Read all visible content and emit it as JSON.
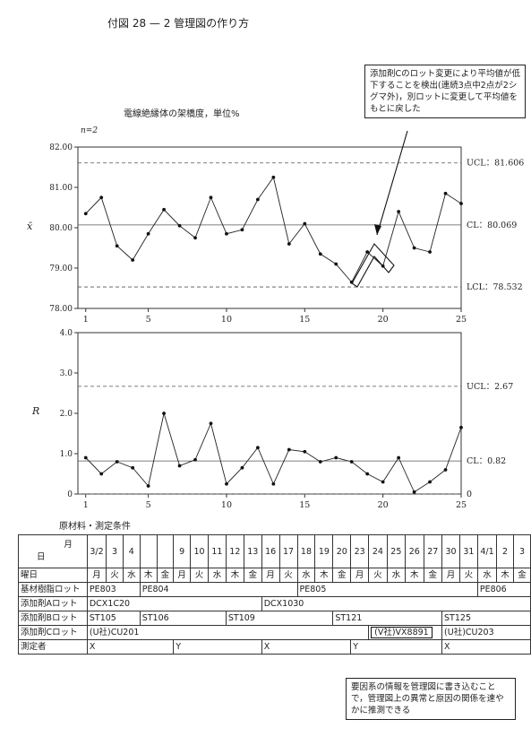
{
  "page": {
    "title": "付図 28 — 2 管理図の作り方"
  },
  "annotation_top": "添加剤Cのロット変更により平均値が低下することを検出(連続3点中2点が2シグマ外)，別ロットに変更して平均値をもとに戻した",
  "annotation_bottom": "要因系の情報を管理図に書き込むことで，管理図上の異常と原因の関係を速やかに推測できる",
  "conditions": {
    "title": "原材料・測定条件",
    "header_month_day": [
      "月",
      "日"
    ],
    "dates": [
      "3/2",
      "3",
      "4",
      "",
      "",
      "9",
      "10",
      "11",
      "12",
      "13",
      "16",
      "17",
      "18",
      "19",
      "20",
      "23",
      "24",
      "25",
      "26",
      "27",
      "30",
      "31",
      "4/1",
      "2",
      "3"
    ],
    "weekday_label": "曜日",
    "weekdays": [
      "月",
      "火",
      "水",
      "木",
      "金",
      "月",
      "火",
      "水",
      "木",
      "金",
      "月",
      "火",
      "水",
      "木",
      "金",
      "月",
      "火",
      "水",
      "木",
      "金",
      "月",
      "火",
      "水",
      "木",
      "金"
    ],
    "rows": [
      {
        "label": "基材樹脂ロット",
        "cells": [
          {
            "text": "PE803",
            "span": 3
          },
          {
            "text": "PE804",
            "span": 9
          },
          {
            "text": "PE805",
            "span": 10
          },
          {
            "text": "PE806",
            "span": 3
          }
        ]
      },
      {
        "label": "添加剤Aロット",
        "cells": [
          {
            "text": "DCX1C20",
            "span": 10
          },
          {
            "text": "DCX1030",
            "span": 15
          }
        ]
      },
      {
        "label": "添加剤Bロット",
        "cells": [
          {
            "text": "ST105",
            "span": 3
          },
          {
            "text": "ST106",
            "span": 5
          },
          {
            "text": "ST109",
            "span": 6
          },
          {
            "text": "ST121",
            "span": 6
          },
          {
            "text": "ST125",
            "span": 5
          }
        ]
      },
      {
        "label": "添加剤Cロット",
        "cells": [
          {
            "text": "(U社)CU201",
            "span": 16
          },
          {
            "text": "(V社)VX8891",
            "span": 4,
            "boxed": true
          },
          {
            "text": "(U社)CU203",
            "span": 5
          }
        ]
      },
      {
        "label": "測定者",
        "cells": [
          {
            "text": "X",
            "span": 5
          },
          {
            "text": "Y",
            "span": 5
          },
          {
            "text": "X",
            "span": 5
          },
          {
            "text": "Y",
            "span": 5
          },
          {
            "text": "X",
            "span": 5
          }
        ]
      }
    ]
  },
  "chart_data": [
    {
      "type": "line",
      "title": "電線絶縁体の架橋度，単位%",
      "n_label": "n=2",
      "ylabel": "x̄",
      "ylim": [
        78.0,
        82.0
      ],
      "yticks": [
        "78.00",
        "79.00",
        "80.00",
        "81.00",
        "82.00"
      ],
      "xticks": [
        1,
        5,
        10,
        15,
        20,
        25
      ],
      "x": [
        1,
        2,
        3,
        4,
        5,
        6,
        7,
        8,
        9,
        10,
        11,
        12,
        13,
        14,
        15,
        16,
        17,
        18,
        19,
        20,
        21,
        22,
        23,
        24,
        25
      ],
      "values": [
        80.35,
        80.75,
        79.55,
        79.2,
        79.85,
        80.45,
        80.05,
        79.75,
        80.75,
        79.85,
        79.95,
        80.7,
        81.25,
        79.6,
        80.1,
        79.35,
        79.1,
        78.65,
        79.4,
        79.05,
        80.4,
        79.5,
        79.4,
        80.85,
        80.6
      ],
      "limits": {
        "ucl": "UCL：81.606",
        "cl": "CL：80.069",
        "lcl": "LCL：78.532"
      },
      "limit_values": {
        "ucl": 81.606,
        "cl": 80.069,
        "lcl": 78.532
      }
    },
    {
      "type": "line",
      "ylabel": "R",
      "ylim": [
        0,
        4.0
      ],
      "yticks": [
        "0",
        "1.0",
        "2.0",
        "3.0",
        "4.0"
      ],
      "xticks": [
        1,
        5,
        10,
        15,
        20,
        25
      ],
      "x": [
        1,
        2,
        3,
        4,
        5,
        6,
        7,
        8,
        9,
        10,
        11,
        12,
        13,
        14,
        15,
        16,
        17,
        18,
        19,
        20,
        21,
        22,
        23,
        24,
        25
      ],
      "values": [
        0.9,
        0.5,
        0.8,
        0.65,
        0.2,
        2.0,
        0.7,
        0.85,
        1.75,
        0.25,
        0.65,
        1.15,
        0.25,
        1.1,
        1.05,
        0.8,
        0.9,
        0.8,
        0.5,
        0.3,
        0.9,
        0.05,
        0.3,
        0.6,
        1.65
      ],
      "limits": {
        "ucl": "UCL：2.67",
        "cl": "CL：0.82",
        "lcl": "0"
      },
      "limit_values": {
        "ucl": 2.67,
        "cl": 0.82,
        "lcl": 0
      }
    }
  ]
}
